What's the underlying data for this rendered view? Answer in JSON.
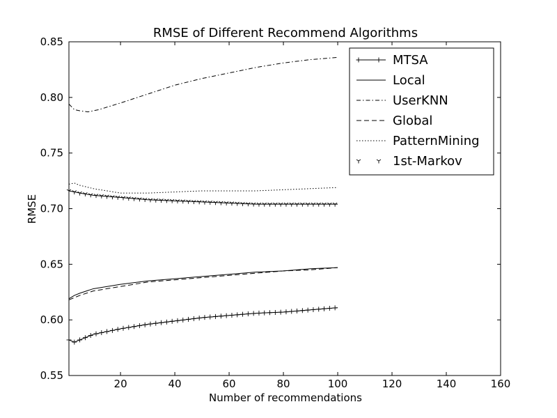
{
  "chart_data": {
    "type": "line",
    "title": "RMSE of Different Recommend Algorithms",
    "xlabel": "Number of recommendations",
    "ylabel": "RMSE",
    "xlim": [
      1,
      160
    ],
    "ylim": [
      0.55,
      0.85
    ],
    "xticks": [
      20,
      40,
      60,
      80,
      100,
      120,
      140,
      160
    ],
    "yticks": [
      0.55,
      0.6,
      0.65,
      0.7,
      0.75,
      0.8,
      0.85
    ],
    "xtick_labels": [
      "20",
      "40",
      "60",
      "80",
      "100",
      "120",
      "140",
      "160"
    ],
    "ytick_labels": [
      "0.55",
      "0.60",
      "0.65",
      "0.70",
      "0.75",
      "0.80",
      "0.85"
    ],
    "grid": false,
    "legend_position": "top-right",
    "series": [
      {
        "name": "MTSA",
        "style": "solid",
        "marker": "plus",
        "x": [
          1,
          3,
          5,
          10,
          20,
          30,
          40,
          50,
          60,
          70,
          80,
          90,
          100
        ],
        "values": [
          0.582,
          0.58,
          0.582,
          0.587,
          0.592,
          0.596,
          0.599,
          0.602,
          0.604,
          0.606,
          0.607,
          0.609,
          0.611
        ]
      },
      {
        "name": "Local",
        "style": "solid",
        "marker": "none",
        "x": [
          1,
          3,
          5,
          10,
          20,
          30,
          40,
          50,
          60,
          70,
          80,
          90,
          100
        ],
        "values": [
          0.619,
          0.622,
          0.624,
          0.628,
          0.632,
          0.635,
          0.637,
          0.639,
          0.641,
          0.643,
          0.644,
          0.646,
          0.647
        ]
      },
      {
        "name": "UserKNN",
        "style": "dashdot",
        "marker": "none",
        "x": [
          1,
          3,
          5,
          8,
          12,
          16,
          20,
          30,
          40,
          50,
          60,
          70,
          80,
          90,
          100
        ],
        "values": [
          0.794,
          0.789,
          0.788,
          0.787,
          0.789,
          0.792,
          0.795,
          0.803,
          0.811,
          0.817,
          0.822,
          0.827,
          0.831,
          0.834,
          0.836
        ]
      },
      {
        "name": "Global",
        "style": "dashed",
        "marker": "none",
        "x": [
          1,
          3,
          5,
          10,
          20,
          30,
          40,
          50,
          60,
          70,
          80,
          90,
          100
        ],
        "values": [
          0.618,
          0.62,
          0.622,
          0.626,
          0.63,
          0.634,
          0.636,
          0.638,
          0.64,
          0.642,
          0.644,
          0.645,
          0.647
        ]
      },
      {
        "name": "PatternMining",
        "style": "dotted",
        "marker": "none",
        "x": [
          1,
          3,
          5,
          10,
          20,
          30,
          40,
          50,
          60,
          70,
          80,
          90,
          100
        ],
        "values": [
          0.722,
          0.723,
          0.721,
          0.718,
          0.714,
          0.714,
          0.715,
          0.716,
          0.716,
          0.716,
          0.717,
          0.718,
          0.719
        ]
      },
      {
        "name": "1st-Markov",
        "style": "solid",
        "marker": "tri_down",
        "x": [
          1,
          3,
          5,
          10,
          20,
          30,
          40,
          50,
          60,
          70,
          80,
          90,
          100
        ],
        "values": [
          0.716,
          0.715,
          0.714,
          0.712,
          0.71,
          0.708,
          0.707,
          0.706,
          0.705,
          0.704,
          0.704,
          0.704,
          0.704
        ]
      }
    ]
  }
}
